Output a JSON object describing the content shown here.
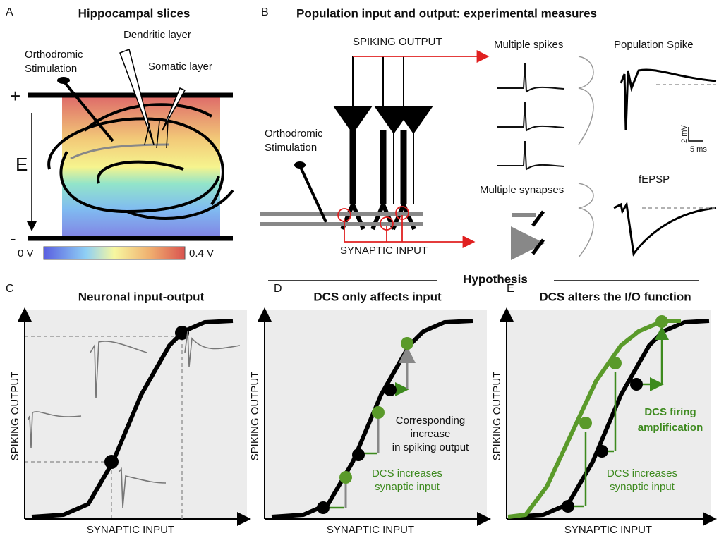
{
  "panel_a": {
    "label": "A",
    "title": "Hippocampal slices",
    "dendritic": "Dendritic layer",
    "stim_1": "Orthodromic",
    "stim_2": "Stimulation",
    "somatic": "Somatic layer",
    "plus": "+",
    "field": "E",
    "minus": "-",
    "cbar_low": "0 V",
    "cbar_high": "0.4 V"
  },
  "panel_b": {
    "label": "B",
    "title": "Population input and output: experimental  measures",
    "output": "SPIKING OUTPUT",
    "stim_1": "Orthodromic",
    "stim_2": "Stimulation",
    "input": "SYNAPTIC INPUT",
    "spikes": "Multiple spikes",
    "pop_spike": "Population Spike",
    "scale_v": "2 mV",
    "scale_t": "5 ms",
    "synapses": "Multiple synapses",
    "fepsp": "fEPSP"
  },
  "hypothesis": "Hypothesis",
  "panel_c": {
    "label": "C",
    "title": "Neuronal input-output",
    "ylabel": "SPIKING OUTPUT",
    "xlabel": "SYNAPTIC INPUT"
  },
  "panel_d": {
    "label": "D",
    "title": "DCS only affects input",
    "ylabel": "SPIKING OUTPUT",
    "xlabel": "SYNAPTIC INPUT",
    "note_1": "Corresponding",
    "note_2": "increase",
    "note_3": "in spiking output",
    "dcs_1": "DCS increases",
    "dcs_2": "synaptic input"
  },
  "panel_e": {
    "label": "E",
    "title": "DCS alters the I/O function",
    "ylabel": "SPIKING OUTPUT",
    "xlabel": "SYNAPTIC INPUT",
    "amp_1": "DCS firing",
    "amp_2": "amplification",
    "dcs_1": "DCS increases",
    "dcs_2": "synaptic input"
  }
}
